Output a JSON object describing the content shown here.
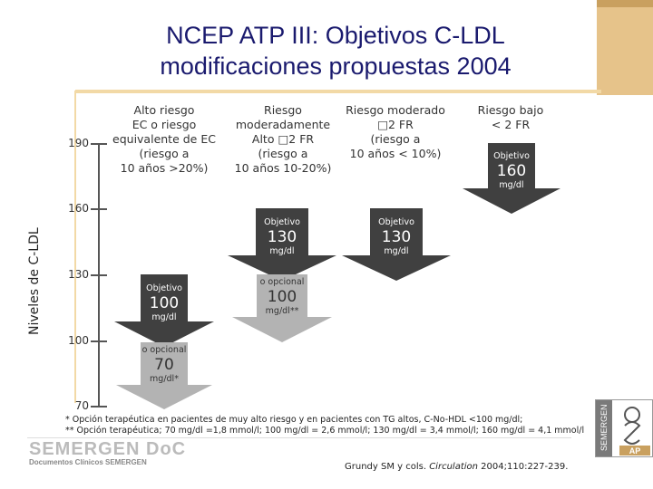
{
  "title_line1": "NCEP ATP III: Objetivos C-LDL",
  "title_line2": "modificaciones propuestas 2004",
  "y_axis_label": "Niveles de C-LDL",
  "ticks": [
    "190",
    "160",
    "130",
    "100",
    "70"
  ],
  "columns": [
    {
      "lines": [
        "Alto riesgo",
        "EC o riesgo",
        "equivalente de EC",
        "(riesgo a",
        "10 años >20%)"
      ]
    },
    {
      "lines": [
        "Riesgo",
        "moderadamente",
        "Alto □2 FR",
        "(riesgo a",
        "10 años 10-20%)"
      ]
    },
    {
      "lines": [
        "Riesgo moderado",
        "□2 FR",
        "(riesgo a",
        "10 años < 10%)"
      ]
    },
    {
      "lines": [
        "Riesgo bajo",
        "< 2 FR"
      ]
    }
  ],
  "targets": [
    {
      "label": "Objetivo",
      "value": "100",
      "unit": "mg/dl"
    },
    {
      "label": "Objetivo",
      "value": "130",
      "unit": "mg/dl"
    },
    {
      "label": "Objetivo",
      "value": "130",
      "unit": "mg/dl"
    },
    {
      "label": "Objetivo",
      "value": "160",
      "unit": "mg/dl"
    }
  ],
  "optionals": [
    {
      "label": "o opcional",
      "value": "70",
      "unit": "mg/dl*"
    },
    {
      "label": "o opcional",
      "value": "100",
      "unit": "mg/dl**"
    }
  ],
  "footnotes": [
    "* Opción terapéutica en pacientes de muy alto riesgo y en pacientes con TG altos, C-No-HDL <100 mg/dl;",
    "** Opción terapéutica; 70 mg/dl =1,8 mmol/l; 100 mg/dl = 2,6 mmol/l; 130 mg/dl = 3,4 mmol/l; 160 mg/dl = 4,1 mmol/l"
  ],
  "logo": {
    "name": "SEMERGEN DoC",
    "subtitle": "Documentos Clínicos SEMERGEN",
    "side_text": "SEMERGEN",
    "side_mark": "AP"
  },
  "citation": {
    "before": "Grundy SM y cols. ",
    "journal": "Circulation",
    "after": " 2004;110:227-239."
  },
  "colors": {
    "title": "#1a1a6e",
    "target_arrow": "#404040",
    "optional_arrow": "#b3b3b3",
    "accent_bar": "#e6c38a"
  }
}
